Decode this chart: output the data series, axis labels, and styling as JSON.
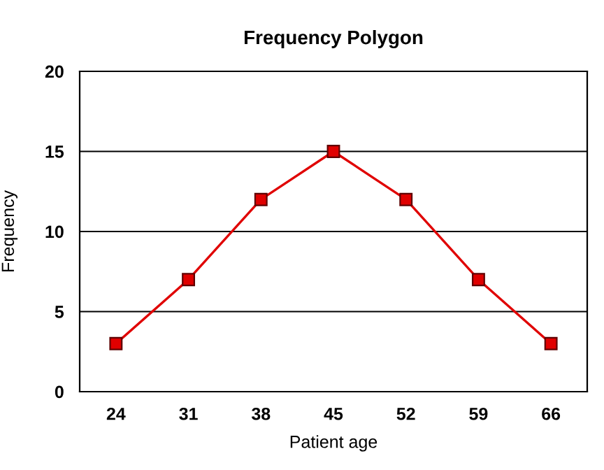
{
  "chart_data": {
    "type": "line",
    "title": "Frequency Polygon",
    "xlabel": "Patient age",
    "ylabel": "Frequency",
    "categories": [
      "24",
      "31",
      "38",
      "45",
      "52",
      "59",
      "66"
    ],
    "series": [
      {
        "color": "#e00000",
        "values": [
          3,
          7,
          12,
          15,
          12,
          7,
          3
        ]
      }
    ],
    "ylim": [
      0,
      20
    ],
    "yticks": [
      0,
      5,
      10,
      15,
      20
    ],
    "grid": "y",
    "marker": "square",
    "line_style": "solid"
  }
}
